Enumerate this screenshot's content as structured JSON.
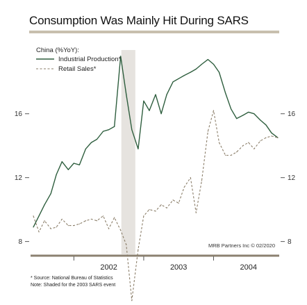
{
  "chart_data": {
    "type": "line",
    "title": "Consumption Was Mainly Hit During SARS",
    "ylabel": "China (%YoY):",
    "ylim": [
      7.2,
      20.6
    ],
    "yticks": [
      8,
      12,
      16
    ],
    "ytick_labels": [
      "8",
      "12",
      "16"
    ],
    "x_tick_labels": [
      "2002",
      "2003",
      "2004"
    ],
    "xlim": [
      2001.38,
      2004.94
    ],
    "shaded_region": {
      "from": 2002.68,
      "to": 2002.88
    },
    "series": [
      {
        "name": "Industrial Production*",
        "style": "solid",
        "color": "#2e5e3e",
        "x": [
          2001.42,
          2001.5,
          2001.58,
          2001.67,
          2001.75,
          2001.83,
          2001.92,
          2002.0,
          2002.08,
          2002.17,
          2002.25,
          2002.33,
          2002.42,
          2002.5,
          2002.58,
          2002.67,
          2002.75,
          2002.83,
          2002.92,
          2003.0,
          2003.08,
          2003.17,
          2003.25,
          2003.33,
          2003.42,
          2003.5,
          2003.58,
          2003.67,
          2003.75,
          2003.83,
          2003.92,
          2004.0,
          2004.08,
          2004.17,
          2004.25,
          2004.33,
          2004.42,
          2004.5,
          2004.58,
          2004.67,
          2004.75,
          2004.83,
          2004.92
        ],
        "values": [
          8.9,
          9.6,
          10.3,
          11.0,
          12.2,
          13.0,
          12.5,
          12.9,
          12.8,
          13.8,
          14.2,
          14.4,
          14.9,
          15.0,
          15.2,
          19.6,
          17.2,
          15.0,
          13.8,
          16.8,
          16.2,
          17.2,
          16.0,
          17.2,
          18.0,
          18.2,
          18.4,
          18.6,
          18.8,
          19.1,
          19.4,
          19.1,
          18.6,
          17.3,
          16.3,
          15.7,
          15.9,
          16.1,
          16.0,
          15.6,
          15.3,
          14.8,
          14.5
        ]
      },
      {
        "name": "Retail Sales*",
        "style": "dashed",
        "color": "#8a7d68",
        "x": [
          2001.42,
          2001.5,
          2001.58,
          2001.67,
          2001.75,
          2001.83,
          2001.92,
          2002.0,
          2002.08,
          2002.17,
          2002.25,
          2002.33,
          2002.42,
          2002.5,
          2002.58,
          2002.67,
          2002.75,
          2002.83,
          2002.92,
          2003.0,
          2003.08,
          2003.17,
          2003.25,
          2003.33,
          2003.42,
          2003.5,
          2003.58,
          2003.67,
          2003.75,
          2003.83,
          2003.92,
          2004.0,
          2004.08,
          2004.17,
          2004.25,
          2004.33,
          2004.42,
          2004.5,
          2004.58,
          2004.67,
          2004.75,
          2004.83,
          2004.92
        ],
        "values": [
          9.6,
          8.6,
          9.3,
          8.8,
          8.9,
          9.4,
          9.0,
          9.0,
          9.1,
          9.3,
          9.4,
          9.3,
          9.6,
          8.8,
          9.5,
          8.7,
          7.8,
          4.3,
          7.5,
          9.6,
          10.0,
          9.9,
          10.3,
          10.1,
          10.6,
          10.4,
          11.4,
          12.0,
          9.8,
          11.8,
          14.9,
          16.2,
          14.2,
          13.4,
          13.4,
          13.6,
          14.0,
          14.2,
          13.8,
          14.3,
          14.5,
          14.6,
          14.5
        ]
      }
    ],
    "credit": "MRB Partners Inc © 02/2020",
    "grid": false,
    "legend_position": "top-left"
  },
  "footnotes": [
    "* Source: National Bureau of Statistics",
    "Note: Shaded for the 2003 SARS event"
  ]
}
